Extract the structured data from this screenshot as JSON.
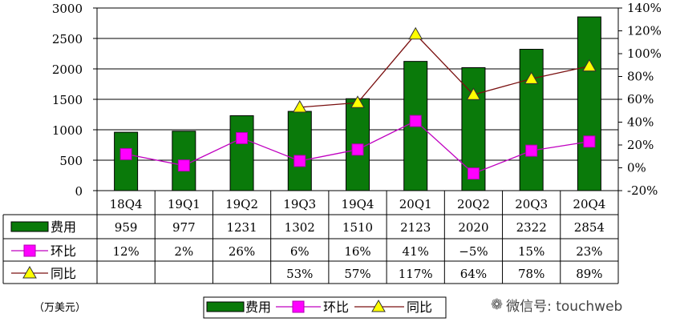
{
  "chart_data": {
    "type": "bar",
    "categories": [
      "18Q4",
      "19Q1",
      "19Q2",
      "19Q3",
      "19Q4",
      "20Q1",
      "20Q2",
      "20Q3",
      "20Q4"
    ],
    "left_axis": {
      "ylim": [
        0,
        3000
      ],
      "ticks": [
        "0",
        "500",
        "1000",
        "1500",
        "2000",
        "2500",
        "3000"
      ]
    },
    "right_axis": {
      "ylim": [
        -20,
        140
      ],
      "ticks": [
        "-20%",
        "0%",
        "20%",
        "40%",
        "60%",
        "80%",
        "100%",
        "120%",
        "140%"
      ]
    },
    "series": [
      {
        "name": "费用",
        "kind": "bar",
        "axis": "left",
        "color": "#0a7a0a",
        "values": [
          959,
          977,
          1231,
          1302,
          1510,
          2123,
          2020,
          2322,
          2854
        ],
        "labels": [
          "959",
          "977",
          "1231",
          "1302",
          "1510",
          "2123",
          "2020",
          "2322",
          "2854"
        ]
      },
      {
        "name": "环比",
        "kind": "line",
        "axis": "right",
        "color": "#ff00ff",
        "line_color": "#c000c0",
        "values": [
          12,
          2,
          26,
          6,
          16,
          41,
          -5,
          15,
          23
        ],
        "labels": [
          "12%",
          "2%",
          "26%",
          "6%",
          "16%",
          "41%",
          "−5%",
          "15%",
          "23%"
        ]
      },
      {
        "name": "同比",
        "kind": "line",
        "axis": "right",
        "color": "#ffff00",
        "line_color": "#7a1010",
        "values": [
          null,
          null,
          null,
          53,
          57,
          117,
          64,
          78,
          89
        ],
        "labels": [
          "",
          "",
          "",
          "53%",
          "57%",
          "117%",
          "64%",
          "78%",
          "89%"
        ]
      }
    ],
    "grid": true,
    "legend_position": "bottom"
  },
  "unit_label": "（万美元）",
  "watermark": {
    "icon": "wechat-icon",
    "text": "微信号: touchweb"
  }
}
